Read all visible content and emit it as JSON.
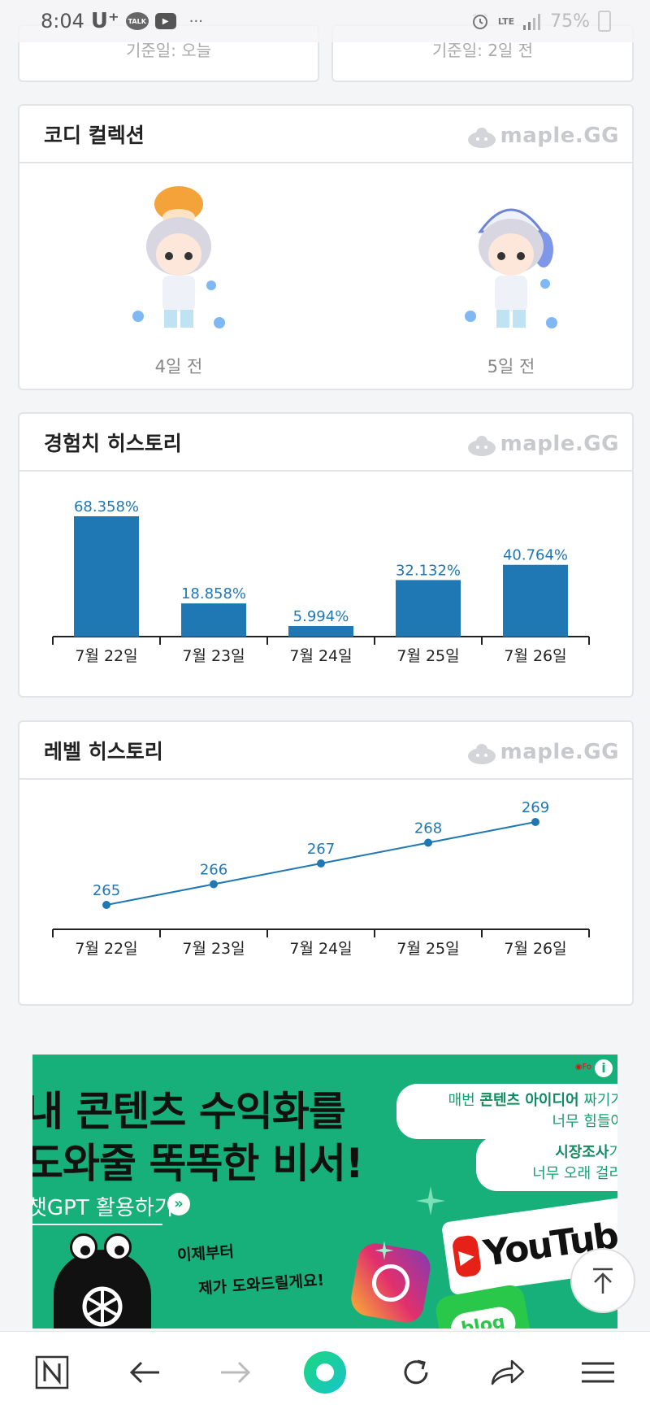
{
  "status_bar": {
    "time": "8:04",
    "carrier": "U⁺",
    "talk_label": "TALK",
    "battery": "75%",
    "network": "LTE"
  },
  "top_cards": {
    "left_caption": "기준일: 오늘",
    "right_caption": "기준일: 2일 전"
  },
  "brand": {
    "logo_text": "maple.GG"
  },
  "coordi": {
    "title": "코디 컬렉션",
    "items": [
      {
        "caption": "4일 전",
        "hat": "mushroom"
      },
      {
        "caption": "5일 전",
        "hat": "cap"
      }
    ]
  },
  "exp_history": {
    "title": "경험치 히스토리"
  },
  "level_history": {
    "title": "레벨 히스토리"
  },
  "chart_data": [
    {
      "type": "bar",
      "categories": [
        "7월 22일",
        "7월 23일",
        "7월 24일",
        "7월 25일",
        "7월 26일"
      ],
      "values": [
        68.358,
        18.858,
        5.994,
        32.132,
        40.764
      ],
      "labels": [
        "68.358%",
        "18.858%",
        "5.994%",
        "32.132%",
        "40.764%"
      ],
      "title": "",
      "xlabel": "",
      "ylabel": "",
      "ylim": [
        0,
        68.358
      ],
      "color": "#1f77b4",
      "grid": false
    },
    {
      "type": "line",
      "categories": [
        "7월 22일",
        "7월 23일",
        "7월 24일",
        "7월 25일",
        "7월 26일"
      ],
      "values": [
        265,
        266,
        267,
        268,
        269
      ],
      "labels": [
        "265",
        "266",
        "267",
        "268",
        "269"
      ],
      "title": "",
      "xlabel": "",
      "ylabel": "",
      "ylim": [
        263.2,
        269
      ],
      "color": "#1f77b4",
      "grid": false
    }
  ],
  "ad": {
    "headline_1": "내 콘텐츠 수익화를",
    "headline_2": "도와줄 똑똑한 비서!",
    "sub": "챗GPT 활용하기",
    "bubble_1_pre": "매번 ",
    "bubble_1_strong": "콘텐츠 아이디어",
    "bubble_1_post": " 짜기가",
    "bubble_1_line2": "너무 힘들어",
    "bubble_2_strong": "시장조사",
    "bubble_2_post": "가",
    "bubble_2_line2": "너무 오래 걸리",
    "small_1": "이제부터",
    "small_2": "제가 도와드릴게요!",
    "youtube_label": "YouTube",
    "blog_label": "blog",
    "info_label": "i"
  },
  "accent_color": "#1f77b4"
}
